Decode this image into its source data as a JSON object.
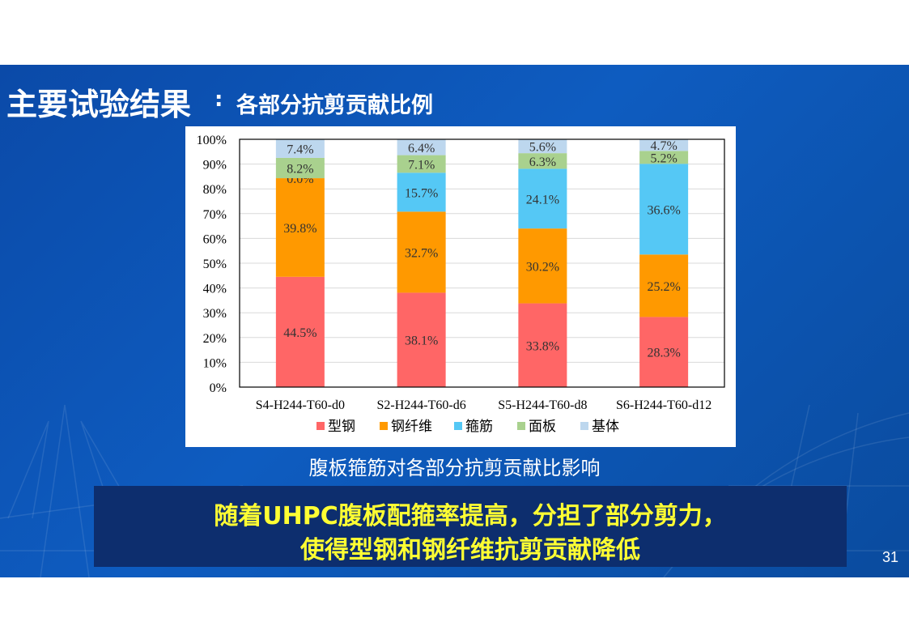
{
  "slide": {
    "title_main": "主要试验结果",
    "title_colon": ":",
    "title_sub": "各部分抗剪贡献比例",
    "caption": "腹板箍筋对各部分抗剪贡献比影响",
    "conclusion_line1": "随着UHPC腹板配箍率提高，分担了部分剪力，",
    "conclusion_line2": "使得型钢和钢纤维抗剪贡献降低",
    "page_number": "31"
  },
  "colors": {
    "steel": "#ff6666",
    "fiber": "#ff9900",
    "stirrup": "#55c8f5",
    "plate": "#a9d18e",
    "matrix": "#bdd7ee",
    "background": "#0b4aa8",
    "conclusion_text": "#ffff33"
  },
  "chart_data": {
    "type": "bar",
    "stacked": true,
    "categories": [
      "S4-H244-T60-d0",
      "S2-H244-T60-d6",
      "S5-H244-T60-d8",
      "S6-H244-T60-d12"
    ],
    "series": [
      {
        "name": "型钢",
        "values": [
          44.5,
          38.1,
          33.8,
          28.3
        ],
        "labels": [
          "44.5%",
          "38.1%",
          "33.8%",
          "28.3%"
        ]
      },
      {
        "name": "钢纤维",
        "values": [
          39.8,
          32.7,
          30.2,
          25.2
        ],
        "labels": [
          "39.8%",
          "32.7%",
          "30.2%",
          "25.2%"
        ]
      },
      {
        "name": "箍筋",
        "values": [
          0.0,
          15.7,
          24.1,
          36.6
        ],
        "labels": [
          "0.0%",
          "15.7%",
          "24.1%",
          "36.6%"
        ]
      },
      {
        "name": "面板",
        "values": [
          8.2,
          7.1,
          6.3,
          5.2
        ],
        "labels": [
          "8.2%",
          "7.1%",
          "6.3%",
          "5.2%"
        ]
      },
      {
        "name": "基体",
        "values": [
          7.4,
          6.4,
          5.6,
          4.7
        ],
        "labels": [
          "7.4%",
          "6.4%",
          "5.6%",
          "4.7%"
        ]
      }
    ],
    "y_ticks": [
      "0%",
      "10%",
      "20%",
      "30%",
      "40%",
      "50%",
      "60%",
      "70%",
      "80%",
      "90%",
      "100%"
    ],
    "ylim": [
      0,
      100
    ],
    "grid": true,
    "legend_position": "bottom"
  }
}
